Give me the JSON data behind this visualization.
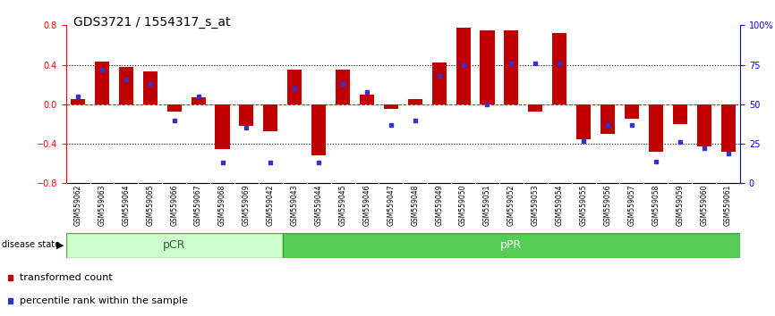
{
  "title": "GDS3721 / 1554317_s_at",
  "samples": [
    "GSM559062",
    "GSM559063",
    "GSM559064",
    "GSM559065",
    "GSM559066",
    "GSM559067",
    "GSM559068",
    "GSM559069",
    "GSM559042",
    "GSM559043",
    "GSM559044",
    "GSM559045",
    "GSM559046",
    "GSM559047",
    "GSM559048",
    "GSM559049",
    "GSM559050",
    "GSM559051",
    "GSM559052",
    "GSM559053",
    "GSM559054",
    "GSM559055",
    "GSM559056",
    "GSM559057",
    "GSM559058",
    "GSM559059",
    "GSM559060",
    "GSM559061"
  ],
  "transformed_count": [
    0.05,
    0.43,
    0.38,
    0.33,
    -0.07,
    0.07,
    -0.45,
    -0.22,
    -0.27,
    0.35,
    -0.52,
    0.35,
    0.1,
    -0.05,
    0.05,
    0.42,
    0.78,
    0.75,
    0.75,
    -0.07,
    0.72,
    -0.35,
    -0.3,
    -0.15,
    -0.48,
    -0.2,
    -0.43,
    -0.48
  ],
  "percentile_rank": [
    55,
    72,
    66,
    63,
    40,
    55,
    13,
    35,
    13,
    60,
    13,
    63,
    58,
    37,
    40,
    68,
    75,
    50,
    76,
    76,
    76,
    27,
    37,
    37,
    14,
    26,
    22,
    19
  ],
  "pcr_count": 9,
  "ppr_count": 19,
  "group_labels": [
    "pCR",
    "pPR"
  ],
  "bar_color": "#c00000",
  "dot_color": "#3333cc",
  "pcr_bg": "#ccffcc",
  "ppr_bg": "#55cc55",
  "tick_label_bg": "#c8c8c8",
  "ylim": [
    -0.8,
    0.8
  ],
  "yticks_left": [
    -0.8,
    -0.4,
    0.0,
    0.4,
    0.8
  ],
  "yticks_right": [
    0,
    25,
    50,
    75,
    100
  ],
  "legend_items": [
    "transformed count",
    "percentile rank within the sample"
  ],
  "disease_state_label": "disease state",
  "title_fontsize": 10,
  "tick_fontsize": 7,
  "label_fontsize": 8,
  "sample_fontsize": 5.5,
  "group_fontsize": 9
}
